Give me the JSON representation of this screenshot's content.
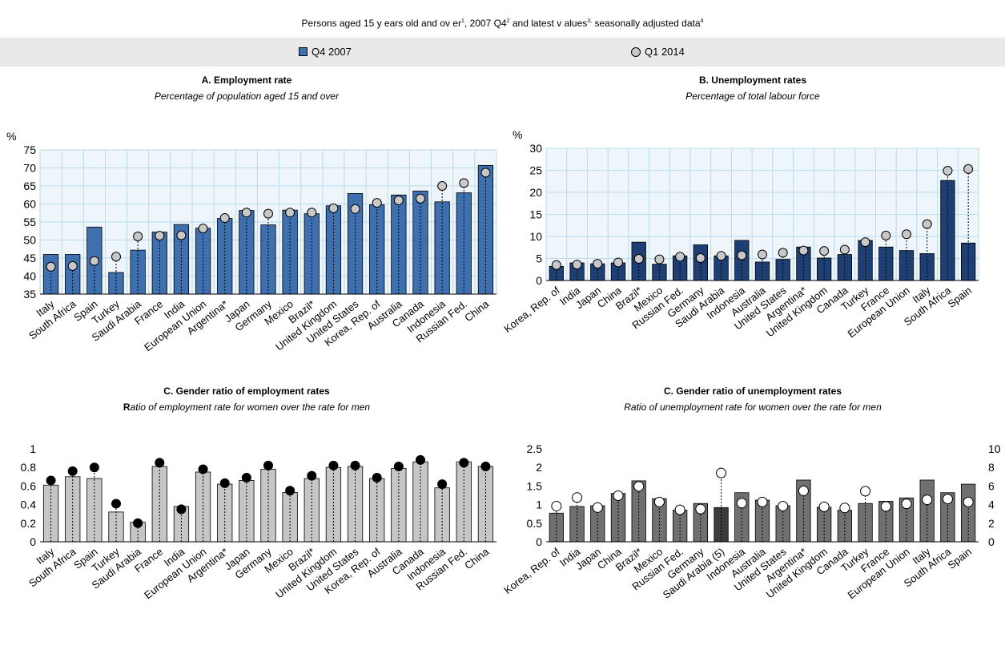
{
  "header": {
    "subtitle_parts": [
      "Persons aged 15 y ears old and ov er",
      "1",
      ", 2007 Q4",
      "2",
      " and latest v alues",
      "3,",
      " seasonally adjusted data",
      "4"
    ]
  },
  "legend": {
    "series1": "Q4 2007",
    "series2": "Q1 2014",
    "colors": {
      "bar_a": "#3e6faf",
      "bar_b": "#1e3f73",
      "bar_c": "#c6c6c6",
      "bar_d": "#707070",
      "bar_d_highlight": "#3c3c3c",
      "marker": "#c8c8c8",
      "plot_bg": "#eef6fb",
      "grid": "#b9dbec"
    }
  },
  "chart_data": [
    {
      "type": "bar",
      "title": "A. Employment rate",
      "subtitle": "Percentage of population aged 15 and over",
      "ylabel": "%",
      "ylim": [
        35,
        75
      ],
      "yticks": [
        35,
        40,
        45,
        50,
        55,
        60,
        65,
        70,
        75
      ],
      "grid": true,
      "categories": [
        "Italy",
        "South Africa",
        "Spain",
        "Turkey",
        "Saudi Arabia",
        "France",
        "India",
        "European Union",
        "Argentina*",
        "Japan",
        "Germany",
        "Mexico",
        "Brazil*",
        "United Kingdom",
        "United States",
        "Korea, Rep. of",
        "Australia",
        "Canada",
        "Indonesia",
        "Russian Fed.",
        "China"
      ],
      "series": [
        {
          "name": "Q4 2007",
          "marker": "bar",
          "values": [
            46,
            46,
            53.6,
            41,
            47.2,
            52.2,
            54.3,
            53.3,
            56,
            58.2,
            54.2,
            58.3,
            57.3,
            59.5,
            62.9,
            59.8,
            62.5,
            63.6,
            60.6,
            63.1,
            70.7
          ]
        },
        {
          "name": "Q1 2014",
          "marker": "circle",
          "values": [
            42.6,
            42.8,
            44.2,
            45.4,
            51,
            51.2,
            51.3,
            53.2,
            56.1,
            57.6,
            57.3,
            57.6,
            57.6,
            58.8,
            58.6,
            60.3,
            61,
            61.5,
            65,
            65.8,
            68.7
          ]
        }
      ]
    },
    {
      "type": "bar",
      "title": "B. Unemployment rates",
      "subtitle": "Percentage of total labour force",
      "ylabel": "%",
      "ylim": [
        0,
        30
      ],
      "yticks": [
        0,
        5,
        10,
        15,
        20,
        25,
        30
      ],
      "grid": true,
      "categories": [
        "Korea, Rep. of",
        "India",
        "Japan",
        "China",
        "Brazil*",
        "Mexico",
        "Russian Fed.",
        "Germany",
        "Saudi Arabia",
        "Indonesia",
        "Australia",
        "United States",
        "Argentina*",
        "United Kingdom",
        "Canada",
        "Turkey",
        "France",
        "European Union",
        "Italy",
        "South Africa",
        "Spain"
      ],
      "series": [
        {
          "name": "Q4 2007",
          "marker": "bar",
          "values": [
            3.2,
            4,
            3.8,
            4,
            8.7,
            3.7,
            5.6,
            8.1,
            5.6,
            9.1,
            4.2,
            4.8,
            7.6,
            5.1,
            5.9,
            9.1,
            7.6,
            6.8,
            6.1,
            22.7,
            8.5
          ]
        },
        {
          "name": "Q1 2014",
          "marker": "circle",
          "values": [
            3.5,
            3.6,
            3.8,
            4.1,
            4.9,
            4.8,
            5.4,
            5.1,
            5.6,
            5.7,
            5.9,
            6.3,
            6.8,
            6.7,
            7,
            8.7,
            10.2,
            10.5,
            12.8,
            24.9,
            25.3
          ]
        }
      ]
    },
    {
      "type": "bar",
      "title": "C. Gender ratio of employment rates",
      "subtitle_lead": "R",
      "subtitle_rest": "atio of employment rate for women over the rate for men",
      "ylim": [
        0,
        1
      ],
      "yticks": [
        0,
        0.2,
        0.4,
        0.6,
        0.8,
        1
      ],
      "grid": false,
      "categories": [
        "Italy",
        "South Africa",
        "Spain",
        "Turkey",
        "Saudi Arabia",
        "France",
        "India",
        "European Union",
        "Argentina*",
        "Japan",
        "Germany",
        "Mexico",
        "Brazil*",
        "United Kingdom",
        "United States",
        "Korea, Rep. of",
        "Australia",
        "Canada",
        "Indonesia",
        "Russian Fed.",
        "China"
      ],
      "series": [
        {
          "name": "Q4 2007",
          "marker": "bar",
          "values": [
            0.61,
            0.7,
            0.68,
            0.32,
            0.21,
            0.81,
            0.38,
            0.75,
            0.62,
            0.66,
            0.78,
            0.53,
            0.68,
            0.8,
            0.81,
            0.68,
            0.79,
            0.86,
            0.58,
            0.86,
            0.81
          ]
        },
        {
          "name": "Q1 2014",
          "marker": "dot",
          "values": [
            0.66,
            0.76,
            0.8,
            0.41,
            0.2,
            0.85,
            0.35,
            0.78,
            0.63,
            0.69,
            0.82,
            0.55,
            0.71,
            0.82,
            0.82,
            0.69,
            0.81,
            0.88,
            0.62,
            0.85,
            0.81
          ]
        }
      ]
    },
    {
      "type": "bar",
      "title": "C. Gender ratio of unemployment rates",
      "subtitle": "Ratio of unemployment rate for women over the rate for men",
      "ylim": [
        0,
        2.5
      ],
      "yticks": [
        0,
        0.5,
        1,
        1.5,
        2,
        2.5
      ],
      "y2lim": [
        0,
        10
      ],
      "y2ticks": [
        0,
        2,
        4,
        6,
        8,
        10
      ],
      "grid": false,
      "categories": [
        "Korea, Rep. of",
        "India",
        "Japan",
        "China",
        "Brazil*",
        "Mexico",
        "Russian Fed.",
        "Germany",
        "Saudi Arabia (5)",
        "Indonesia",
        "Australia",
        "United States",
        "Argentina*",
        "United Kingdom",
        "Canada",
        "Turkey",
        "France",
        "European Union",
        "Italy",
        "South Africa",
        "Spain"
      ],
      "highlight_category": "Saudi Arabia (5)",
      "series": [
        {
          "name": "Q4 2007",
          "marker": "bar",
          "values": [
            0.77,
            0.95,
            0.97,
            1.3,
            1.64,
            1.16,
            0.85,
            1.03,
            0.92,
            1.32,
            1.12,
            0.97,
            1.66,
            0.93,
            0.85,
            1.03,
            1.09,
            1.18,
            1.66,
            1.32,
            1.55
          ]
        },
        {
          "name": "Q1 2014",
          "marker": "open-circle",
          "values": [
            0.96,
            1.19,
            0.92,
            1.24,
            1.49,
            1.07,
            0.86,
            0.88,
            1.85,
            1.04,
            1.07,
            0.96,
            1.37,
            0.94,
            0.91,
            1.36,
            0.95,
            1.02,
            1.13,
            1.15,
            1.07
          ]
        }
      ]
    }
  ]
}
